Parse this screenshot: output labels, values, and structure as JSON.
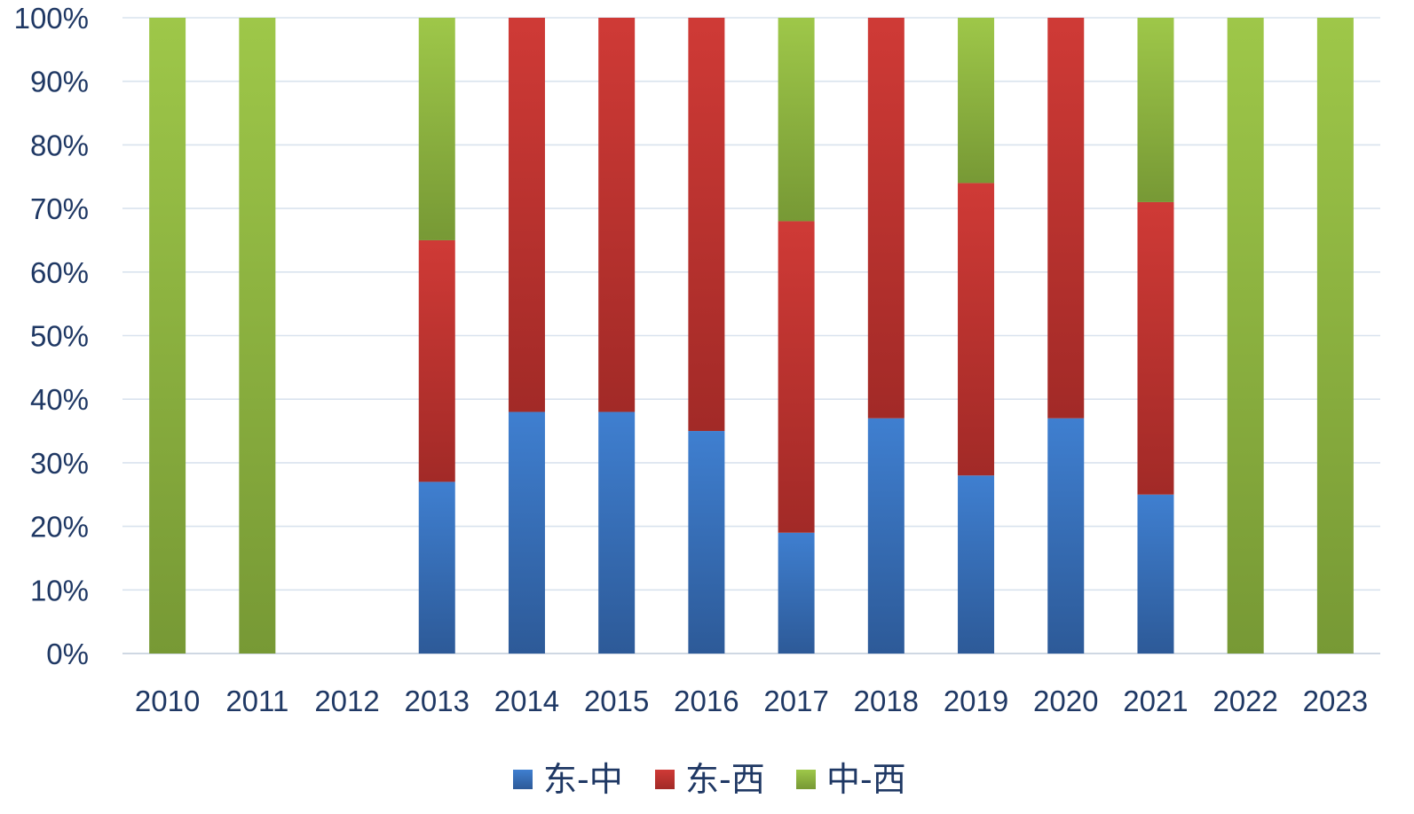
{
  "chart_data": {
    "type": "bar",
    "stacked": "percent",
    "categories": [
      "2010",
      "2011",
      "2012",
      "2013",
      "2014",
      "2015",
      "2016",
      "2017",
      "2018",
      "2019",
      "2020",
      "2021",
      "2022",
      "2023"
    ],
    "series": [
      {
        "name": "东-中",
        "color": "#3a6fbd",
        "values": [
          0,
          0,
          0,
          27,
          38,
          38,
          35,
          19,
          37,
          28,
          37,
          25,
          0,
          0
        ]
      },
      {
        "name": "东-西",
        "color": "#c0302c",
        "values": [
          0,
          0,
          0,
          38,
          62,
          62,
          65,
          49,
          63,
          46,
          63,
          46,
          0,
          0
        ]
      },
      {
        "name": "中-西",
        "color": "#8db33c",
        "values": [
          100,
          100,
          0,
          35,
          0,
          0,
          0,
          32,
          0,
          26,
          0,
          29,
          100,
          100
        ]
      }
    ],
    "ylim": [
      0,
      100
    ],
    "yticks": [
      "0%",
      "10%",
      "20%",
      "30%",
      "40%",
      "50%",
      "60%",
      "70%",
      "80%",
      "90%",
      "100%"
    ],
    "grid": true,
    "legend_position": "bottom"
  }
}
